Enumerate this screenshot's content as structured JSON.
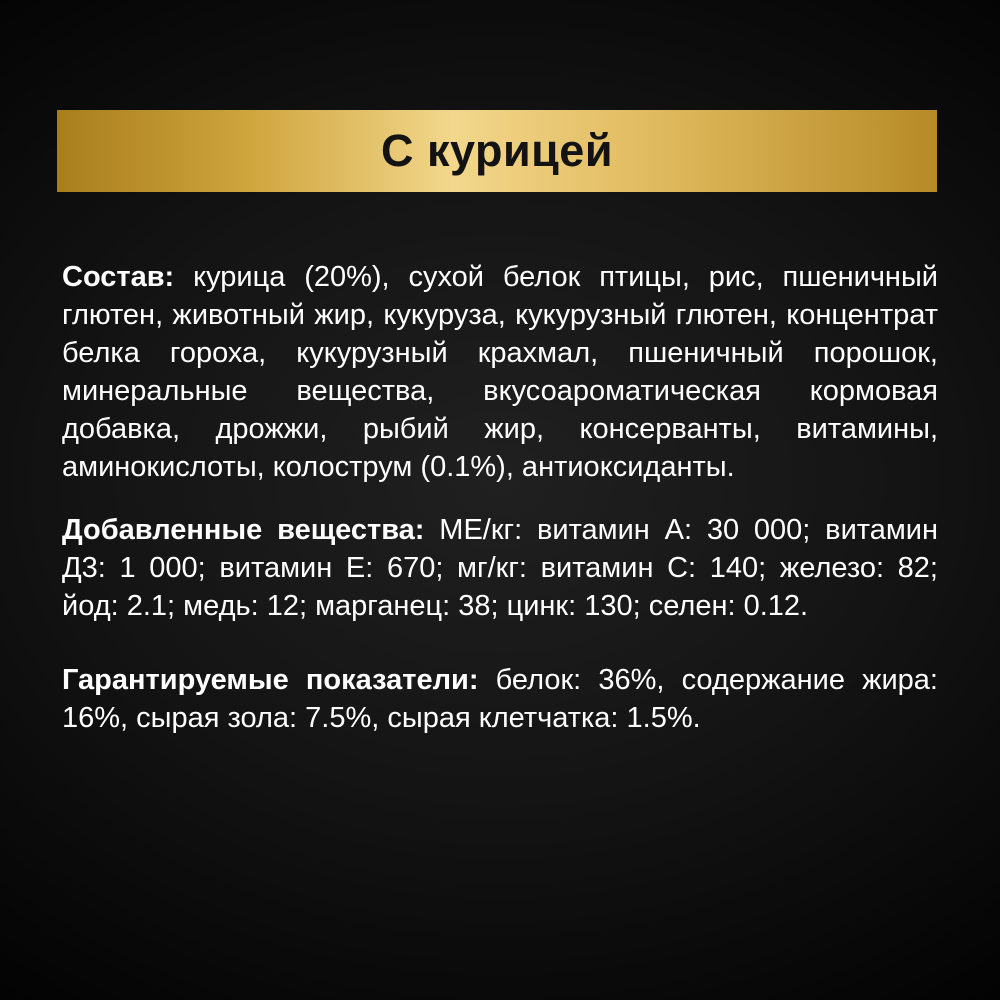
{
  "banner": {
    "title": "С курицей"
  },
  "theme": {
    "page_bg_center": "#202020",
    "page_bg_mid": "#141414",
    "page_bg_edge": "#000000",
    "gold_left": "#a87d1c",
    "gold_step1": "#cfa53e",
    "gold_mid": "#f2d78c",
    "gold_step2": "#e0ba5e",
    "gold_right": "#b68a26",
    "banner_text": "#131313",
    "body_text": "#ffffff"
  },
  "sections": [
    {
      "label": "Состав:",
      "text": " курица (20%), сухой белок птицы, рис, пшеничный глютен, животный жир, кукуруза, кукурузный глютен, концентрат белка гороха, кукурузный крахмал, пшеничный порошок, минеральные вещества, вкусоароматическая кормовая добавка, дрожжи, рыбий жир, консерванты, витамины, аминокислоты, колострум (0.1%), антиоксиданты."
    },
    {
      "label": "Добавленные вещества:",
      "text": " МЕ/кг: витамин А: 30 000; витамин Д3: 1 000; витамин Е: 670; мг/кг: витамин С: 140; железо: 82; йод: 2.1; медь: 12; марганец: 38; цинк: 130; селен: 0.12."
    },
    {
      "label": "Гарантируемые показатели:",
      "text": " белок: 36%, содержание жира: 16%, сырая зола: 7.5%, сырая клетчатка: 1.5%."
    }
  ]
}
